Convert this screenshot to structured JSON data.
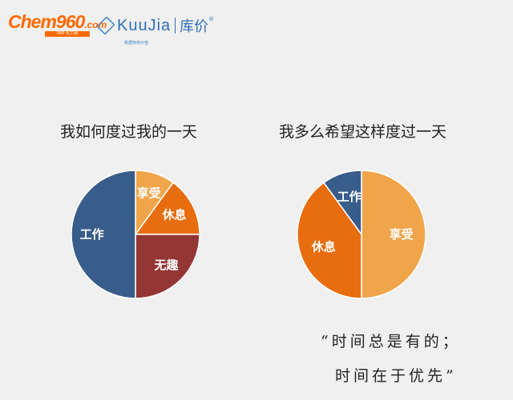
{
  "header": {
    "chem_logo": {
      "brand": "hem960",
      "initial": "C",
      "domain": ".com",
      "sub": "960 化工网"
    },
    "kuujia_logo": {
      "brand": "uuJia",
      "initial": "K",
      "cn": "库价",
      "sub": "数据库存价值"
    }
  },
  "colors": {
    "blue": "#385d8a",
    "light_orange": "#f0a54a",
    "orange": "#e86d0e",
    "dark_red": "#943634"
  },
  "chart_data": [
    {
      "type": "pie",
      "title": "我如何度过我的一天",
      "slices": [
        {
          "label": "享受",
          "value": 10,
          "color": "#f0a54a"
        },
        {
          "label": "休息",
          "value": 15,
          "color": "#e86d0e"
        },
        {
          "label": "无趣",
          "value": 25,
          "color": "#943634"
        },
        {
          "label": "工作",
          "value": 50,
          "color": "#385d8a"
        }
      ]
    },
    {
      "type": "pie",
      "title": "我多么希望这样度过一天",
      "slices": [
        {
          "label": "享受",
          "value": 50,
          "color": "#f0a54a"
        },
        {
          "label": "休息",
          "value": 40,
          "color": "#e86d0e"
        },
        {
          "label": "工作",
          "value": 10,
          "color": "#385d8a"
        }
      ]
    }
  ],
  "quote": {
    "line1": "“时间总是有的；",
    "line2": "时间在于优先”"
  }
}
